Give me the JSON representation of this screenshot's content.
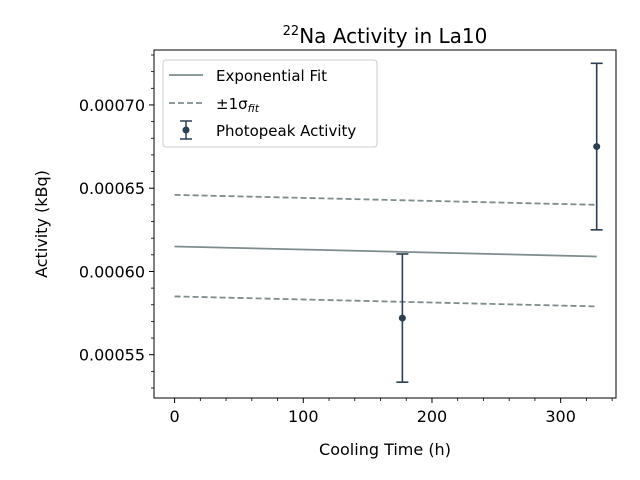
{
  "chart_data": {
    "type": "scatter",
    "title_sup": "22",
    "title_main": "Na Activity in La10",
    "xlabel": "Cooling Time (h)",
    "ylabel": "Activity (kBq)",
    "xlim": [
      -16,
      343
    ],
    "ylim": [
      0.000524,
      0.000733
    ],
    "x_ticks": [
      0,
      100,
      200,
      300
    ],
    "x_tick_labels": [
      "0",
      "100",
      "200",
      "300"
    ],
    "y_ticks": [
      0.00055,
      0.0006,
      0.00065,
      0.0007
    ],
    "y_tick_labels": [
      "0.00055",
      "0.00060",
      "0.00065",
      "0.00070"
    ],
    "grid": false,
    "legend_position": "top-left",
    "legend": {
      "fit_label": "Exponential Fit",
      "sigma_label_prefix": "±1σ",
      "sigma_label_sub": "fit",
      "data_label": "Photopeak Activity"
    },
    "colors": {
      "fit": "#7f8c8d",
      "data": "#2c3e50"
    },
    "series": [
      {
        "name": "Exponential Fit",
        "style": "solid",
        "x": [
          0,
          328
        ],
        "y": [
          0.000615,
          0.000609
        ]
      },
      {
        "name": "±1σfit",
        "style": "dashed",
        "x": [
          0,
          328
        ],
        "y": [
          0.000646,
          0.00064
        ]
      },
      {
        "name": "±1σfit",
        "style": "dashed",
        "x": [
          0,
          328
        ],
        "y": [
          0.000585,
          0.000579
        ]
      },
      {
        "name": "Photopeak Activity",
        "style": "errorbar",
        "x": [
          177,
          328
        ],
        "y": [
          0.000572,
          0.000675
        ],
        "yerr": [
          3.85e-05,
          5e-05
        ]
      }
    ]
  }
}
